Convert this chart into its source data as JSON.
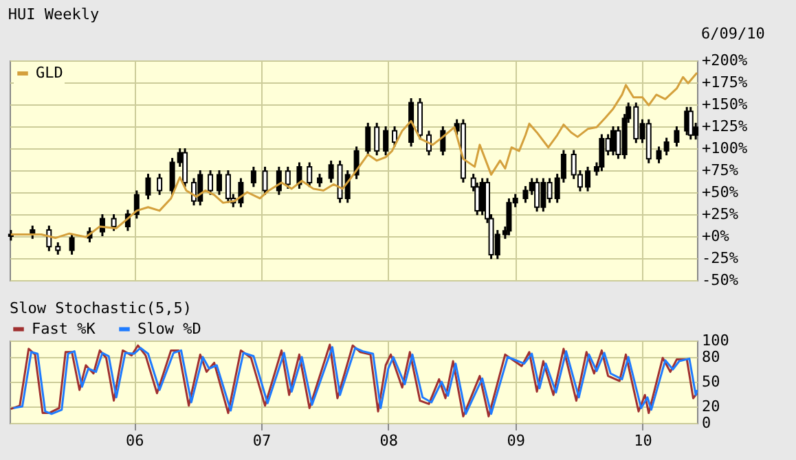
{
  "chart_data": [
    {
      "type": "candlestick",
      "title": "HUI Weekly",
      "color": "#000000",
      "annotations": [
        "6/09/10"
      ],
      "x": [
        2005.03,
        2005.2,
        2005.33,
        2005.4,
        2005.51,
        2005.65,
        2005.75,
        2005.84,
        2005.95,
        2006.02,
        2006.11,
        2006.2,
        2006.3,
        2006.36,
        2006.4,
        2006.47,
        2006.52,
        2006.6,
        2006.67,
        2006.74,
        2006.78,
        2006.84,
        2006.94,
        2007.03,
        2007.14,
        2007.21,
        2007.3,
        2007.38,
        2007.46,
        2007.55,
        2007.62,
        2007.68,
        2007.75,
        2007.84,
        2007.91,
        2007.98,
        2008.05,
        2008.18,
        2008.25,
        2008.32,
        2008.43,
        2008.54,
        2008.59,
        2008.67,
        2008.7,
        2008.74,
        2008.78,
        2008.81,
        2008.86,
        2008.92,
        2008.95,
        2009.0,
        2009.08,
        2009.13,
        2009.17,
        2009.22,
        2009.27,
        2009.33,
        2009.38,
        2009.46,
        2009.51,
        2009.57,
        2009.64,
        2009.68,
        2009.73,
        2009.77,
        2009.81,
        2009.86,
        2009.89,
        2009.95,
        2010.0,
        2010.05,
        2010.13,
        2010.19,
        2010.27,
        2010.35,
        2010.38,
        2010.42
      ],
      "ohlc": [
        [
          0,
          7,
          -5,
          2
        ],
        [
          2,
          12,
          -3,
          7
        ],
        [
          7,
          12,
          -17,
          -12
        ],
        [
          -12,
          -7,
          -21,
          -16
        ],
        [
          -16,
          3,
          -21,
          -2
        ],
        [
          -2,
          10,
          -7,
          5
        ],
        [
          5,
          25,
          0,
          20
        ],
        [
          20,
          25,
          6,
          11
        ],
        [
          11,
          30,
          6,
          25
        ],
        [
          25,
          52,
          20,
          47
        ],
        [
          47,
          71,
          42,
          66
        ],
        [
          66,
          71,
          47,
          52
        ],
        [
          52,
          89,
          47,
          84
        ],
        [
          84,
          100,
          79,
          95
        ],
        [
          95,
          100,
          56,
          61
        ],
        [
          61,
          66,
          35,
          40
        ],
        [
          40,
          75,
          35,
          70
        ],
        [
          70,
          75,
          47,
          52
        ],
        [
          52,
          75,
          47,
          70
        ],
        [
          70,
          75,
          38,
          43
        ],
        [
          43,
          48,
          33,
          38
        ],
        [
          38,
          66,
          33,
          61
        ],
        [
          61,
          79,
          56,
          74
        ],
        [
          74,
          79,
          47,
          52
        ],
        [
          52,
          79,
          47,
          74
        ],
        [
          74,
          79,
          54,
          59
        ],
        [
          59,
          84,
          54,
          79
        ],
        [
          79,
          84,
          56,
          61
        ],
        [
          61,
          71,
          56,
          66
        ],
        [
          66,
          86,
          61,
          81
        ],
        [
          81,
          86,
          38,
          43
        ],
        [
          43,
          75,
          38,
          70
        ],
        [
          70,
          102,
          65,
          97
        ],
        [
          97,
          129,
          92,
          124
        ],
        [
          124,
          129,
          92,
          97
        ],
        [
          97,
          125,
          92,
          120
        ],
        [
          120,
          125,
          102,
          107
        ],
        [
          107,
          157,
          102,
          152
        ],
        [
          152,
          157,
          110,
          115
        ],
        [
          115,
          120,
          92,
          97
        ],
        [
          97,
          125,
          92,
          120
        ],
        [
          120,
          133,
          115,
          128
        ],
        [
          128,
          133,
          61,
          66
        ],
        [
          66,
          71,
          51,
          56
        ],
        [
          56,
          61,
          24,
          29
        ],
        [
          29,
          66,
          24,
          61
        ],
        [
          61,
          66,
          15,
          20
        ],
        [
          20,
          25,
          -26,
          -21
        ],
        [
          -21,
          7,
          -26,
          2
        ],
        [
          2,
          11,
          -3,
          6
        ],
        [
          6,
          43,
          1,
          38
        ],
        [
          38,
          48,
          33,
          43
        ],
        [
          43,
          57,
          38,
          52
        ],
        [
          52,
          66,
          47,
          61
        ],
        [
          61,
          66,
          28,
          33
        ],
        [
          33,
          66,
          28,
          61
        ],
        [
          61,
          66,
          38,
          43
        ],
        [
          43,
          71,
          38,
          66
        ],
        [
          66,
          98,
          61,
          93
        ],
        [
          93,
          98,
          65,
          70
        ],
        [
          70,
          75,
          51,
          56
        ],
        [
          56,
          79,
          51,
          74
        ],
        [
          74,
          84,
          69,
          79
        ],
        [
          79,
          116,
          74,
          111
        ],
        [
          111,
          116,
          92,
          97
        ],
        [
          97,
          125,
          92,
          120
        ],
        [
          120,
          125,
          88,
          93
        ],
        [
          93,
          139,
          88,
          134
        ],
        [
          134,
          152,
          129,
          147
        ],
        [
          147,
          152,
          106,
          111
        ],
        [
          111,
          133,
          106,
          128
        ],
        [
          128,
          133,
          83,
          88
        ],
        [
          88,
          102,
          83,
          97
        ],
        [
          97,
          112,
          92,
          107
        ],
        [
          107,
          125,
          102,
          120
        ],
        [
          120,
          147,
          115,
          142
        ],
        [
          142,
          147,
          110,
          115
        ],
        [
          115,
          129,
          110,
          124
        ]
      ],
      "series": [
        {
          "name": "GLD",
          "type": "line",
          "color": "#d4a03c",
          "x": [
            2005.03,
            2005.27,
            2005.38,
            2005.49,
            2005.62,
            2005.73,
            2005.86,
            2005.95,
            2006.02,
            2006.11,
            2006.2,
            2006.29,
            2006.36,
            2006.41,
            2006.49,
            2006.56,
            2006.63,
            2006.7,
            2006.79,
            2006.89,
            2006.99,
            2007.06,
            2007.16,
            2007.24,
            2007.32,
            2007.41,
            2007.49,
            2007.57,
            2007.64,
            2007.71,
            2007.78,
            2007.84,
            2007.91,
            2007.98,
            2008.03,
            2008.11,
            2008.18,
            2008.25,
            2008.35,
            2008.43,
            2008.52,
            2008.59,
            2008.68,
            2008.72,
            2008.81,
            2008.88,
            2008.92,
            2008.97,
            2009.03,
            2009.08,
            2009.11,
            2009.17,
            2009.26,
            2009.33,
            2009.38,
            2009.44,
            2009.49,
            2009.57,
            2009.64,
            2009.71,
            2009.77,
            2009.84,
            2009.87,
            2009.93,
            2010.0,
            2010.05,
            2010.11,
            2010.18,
            2010.27,
            2010.32,
            2010.36,
            2010.43
          ],
          "values": [
            2,
            2,
            -2,
            3,
            -1,
            11,
            9,
            20,
            29,
            33,
            29,
            43,
            67,
            52,
            45,
            52,
            47,
            38,
            40,
            50,
            43,
            52,
            61,
            54,
            63,
            54,
            52,
            59,
            54,
            67,
            81,
            93,
            86,
            90,
            97,
            120,
            131,
            111,
            104,
            113,
            124,
            88,
            79,
            104,
            70,
            86,
            77,
            101,
            97,
            115,
            128,
            118,
            101,
            115,
            127,
            118,
            113,
            122,
            124,
            135,
            145,
            161,
            172,
            158,
            158,
            149,
            161,
            156,
            168,
            181,
            174,
            186
          ]
        }
      ],
      "xlim": [
        2005.02,
        2010.43
      ],
      "xticks": [
        {
          "value": 2006,
          "label": null
        },
        {
          "value": 2007,
          "label": null
        },
        {
          "value": 2008,
          "label": null
        },
        {
          "value": 2009,
          "label": null
        },
        {
          "value": 2010,
          "label": null
        }
      ],
      "ylim": [
        -50,
        200
      ],
      "yticks": [
        {
          "value": 200,
          "label": "+200%"
        },
        {
          "value": 175,
          "label": "+175%"
        },
        {
          "value": 150,
          "label": "+150%"
        },
        {
          "value": 125,
          "label": "+125%"
        },
        {
          "value": 100,
          "label": "+100%"
        },
        {
          "value": 75,
          "label": "+75%"
        },
        {
          "value": 50,
          "label": "+50%"
        },
        {
          "value": 25,
          "label": "+25%"
        },
        {
          "value": 0,
          "label": "+0%"
        },
        {
          "value": -25,
          "label": "-25%"
        },
        {
          "value": -50,
          "label": "-50%"
        }
      ],
      "tick_labels": "y",
      "grid": true,
      "legend": "top left"
    },
    {
      "type": "line",
      "title": "Slow Stochastic(5,5)",
      "series": [
        {
          "name": "Fast %K",
          "color": "#a03030",
          "x": [
            2005.03,
            2005.1,
            2005.17,
            2005.22,
            2005.28,
            2005.33,
            2005.41,
            2005.46,
            2005.51,
            2005.57,
            2005.62,
            2005.68,
            2005.73,
            2005.78,
            2005.84,
            2005.91,
            2005.98,
            2006.03,
            2006.09,
            2006.18,
            2006.29,
            2006.35,
            2006.43,
            2006.52,
            2006.57,
            2006.63,
            2006.74,
            2006.84,
            2006.92,
            2007.03,
            2007.16,
            2007.22,
            2007.3,
            2007.38,
            2007.54,
            2007.6,
            2007.72,
            2007.78,
            2007.86,
            2007.92,
            2007.98,
            2008.02,
            2008.11,
            2008.17,
            2008.25,
            2008.32,
            2008.4,
            2008.45,
            2008.51,
            2008.59,
            2008.72,
            2008.79,
            2008.92,
            2009.05,
            2009.11,
            2009.17,
            2009.22,
            2009.3,
            2009.38,
            2009.48,
            2009.56,
            2009.62,
            2009.68,
            2009.73,
            2009.82,
            2009.87,
            2009.97,
            2010.02,
            2010.05,
            2010.16,
            2010.22,
            2010.27,
            2010.35,
            2010.4,
            2010.43
          ],
          "values": [
            17,
            21,
            90,
            83,
            12,
            12,
            18,
            86,
            86,
            40,
            70,
            60,
            88,
            79,
            27,
            88,
            82,
            94,
            82,
            36,
            88,
            88,
            21,
            83,
            62,
            73,
            12,
            88,
            79,
            21,
            88,
            34,
            83,
            18,
            95,
            30,
            94,
            86,
            83,
            14,
            70,
            83,
            43,
            86,
            27,
            23,
            53,
            30,
            75,
            8,
            57,
            8,
            83,
            69,
            86,
            38,
            75,
            34,
            90,
            27,
            86,
            60,
            88,
            57,
            51,
            83,
            14,
            34,
            12,
            79,
            62,
            77,
            77,
            30,
            36
          ]
        },
        {
          "name": "Slow %D",
          "color": "#1e7bff",
          "x": [
            2005.05,
            2005.12,
            2005.19,
            2005.24,
            2005.3,
            2005.35,
            2005.43,
            2005.48,
            2005.53,
            2005.59,
            2005.64,
            2005.7,
            2005.75,
            2005.8,
            2005.86,
            2005.93,
            2006.0,
            2006.05,
            2006.11,
            2006.2,
            2006.31,
            2006.37,
            2006.45,
            2006.54,
            2006.59,
            2006.65,
            2006.76,
            2006.86,
            2006.94,
            2007.05,
            2007.18,
            2007.24,
            2007.32,
            2007.4,
            2007.56,
            2007.62,
            2007.74,
            2007.8,
            2007.88,
            2007.94,
            2008.0,
            2008.04,
            2008.13,
            2008.19,
            2008.27,
            2008.34,
            2008.42,
            2008.47,
            2008.53,
            2008.61,
            2008.74,
            2008.81,
            2008.94,
            2009.07,
            2009.13,
            2009.19,
            2009.24,
            2009.32,
            2009.4,
            2009.5,
            2009.58,
            2009.64,
            2009.7,
            2009.75,
            2009.84,
            2009.89,
            2009.99,
            2010.04,
            2010.07,
            2010.18,
            2010.24,
            2010.29,
            2010.37,
            2010.42,
            2010.43
          ],
          "values": [
            18,
            20,
            86,
            84,
            14,
            11,
            16,
            84,
            87,
            44,
            66,
            62,
            85,
            81,
            31,
            85,
            84,
            91,
            84,
            40,
            85,
            88,
            25,
            80,
            66,
            70,
            15,
            85,
            81,
            24,
            85,
            38,
            80,
            22,
            92,
            34,
            91,
            87,
            84,
            18,
            66,
            80,
            47,
            83,
            31,
            25,
            50,
            33,
            72,
            11,
            54,
            11,
            80,
            72,
            84,
            42,
            72,
            37,
            87,
            31,
            83,
            63,
            85,
            60,
            53,
            80,
            18,
            31,
            16,
            76,
            65,
            75,
            78,
            34,
            40
          ]
        }
      ],
      "xlim": [
        2005.02,
        2010.43
      ],
      "xticks": [
        {
          "value": 2006,
          "label": "06"
        },
        {
          "value": 2007,
          "label": "07"
        },
        {
          "value": 2008,
          "label": "08"
        },
        {
          "value": 2009,
          "label": "09"
        },
        {
          "value": 2010,
          "label": "10"
        }
      ],
      "ylim": [
        0,
        100
      ],
      "yticks": [
        0,
        20,
        50,
        80,
        100
      ],
      "grid": true,
      "legend": "top"
    }
  ]
}
